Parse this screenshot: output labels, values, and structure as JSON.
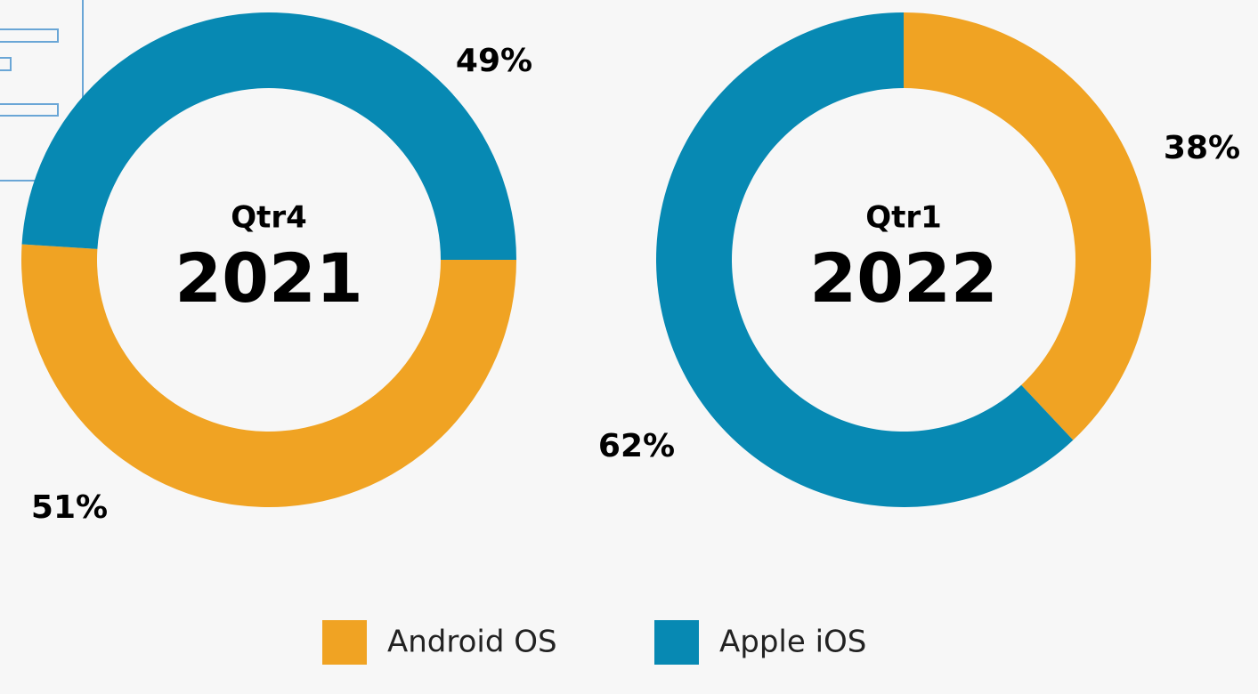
{
  "chart_data": [
    {
      "type": "donut",
      "title": "Qtr4",
      "subtitle": "2021",
      "categories": [
        "Android OS",
        "Apple iOS"
      ],
      "values": [
        51,
        49
      ],
      "value_labels": [
        "51%",
        "49%"
      ],
      "colors": [
        "#f0a323",
        "#0789b3"
      ],
      "start_angle": 90
    },
    {
      "type": "donut",
      "title": "Qtr1",
      "subtitle": "2022",
      "categories": [
        "Android OS",
        "Apple iOS"
      ],
      "values": [
        38,
        62
      ],
      "value_labels": [
        "38%",
        "62%"
      ],
      "colors": [
        "#f0a323",
        "#0789b3"
      ],
      "start_angle": 0
    }
  ]
}
